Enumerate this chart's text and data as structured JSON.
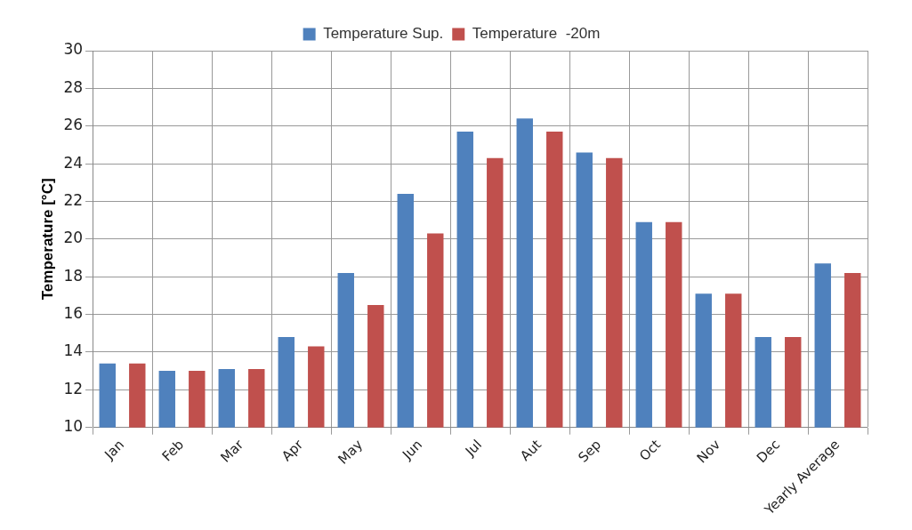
{
  "chart_data": {
    "type": "bar",
    "ylabel": "Temperature [°C]",
    "categories": [
      "Jan",
      "Feb",
      "Mar",
      "Apr",
      "May",
      "Jun",
      "Jul",
      "Aut",
      "Sep",
      "Oct",
      "Nov",
      "Dec",
      "Yearly Average"
    ],
    "series": [
      {
        "name": "Temperature Sup.",
        "color": "#4f81bd",
        "values": [
          13.4,
          13.0,
          13.1,
          14.8,
          18.2,
          22.4,
          25.7,
          26.4,
          24.6,
          20.9,
          17.1,
          14.8,
          18.7
        ]
      },
      {
        "name": "Temperature  -20m",
        "color": "#c0504d",
        "values": [
          13.4,
          13.0,
          13.1,
          14.3,
          16.5,
          20.3,
          24.3,
          25.7,
          24.3,
          20.9,
          17.1,
          14.8,
          18.2
        ]
      }
    ],
    "ylim": [
      10,
      30
    ],
    "yticks": [
      10,
      12,
      14,
      16,
      18,
      20,
      22,
      24,
      26,
      28,
      30
    ],
    "grid": true,
    "legend": "top"
  }
}
